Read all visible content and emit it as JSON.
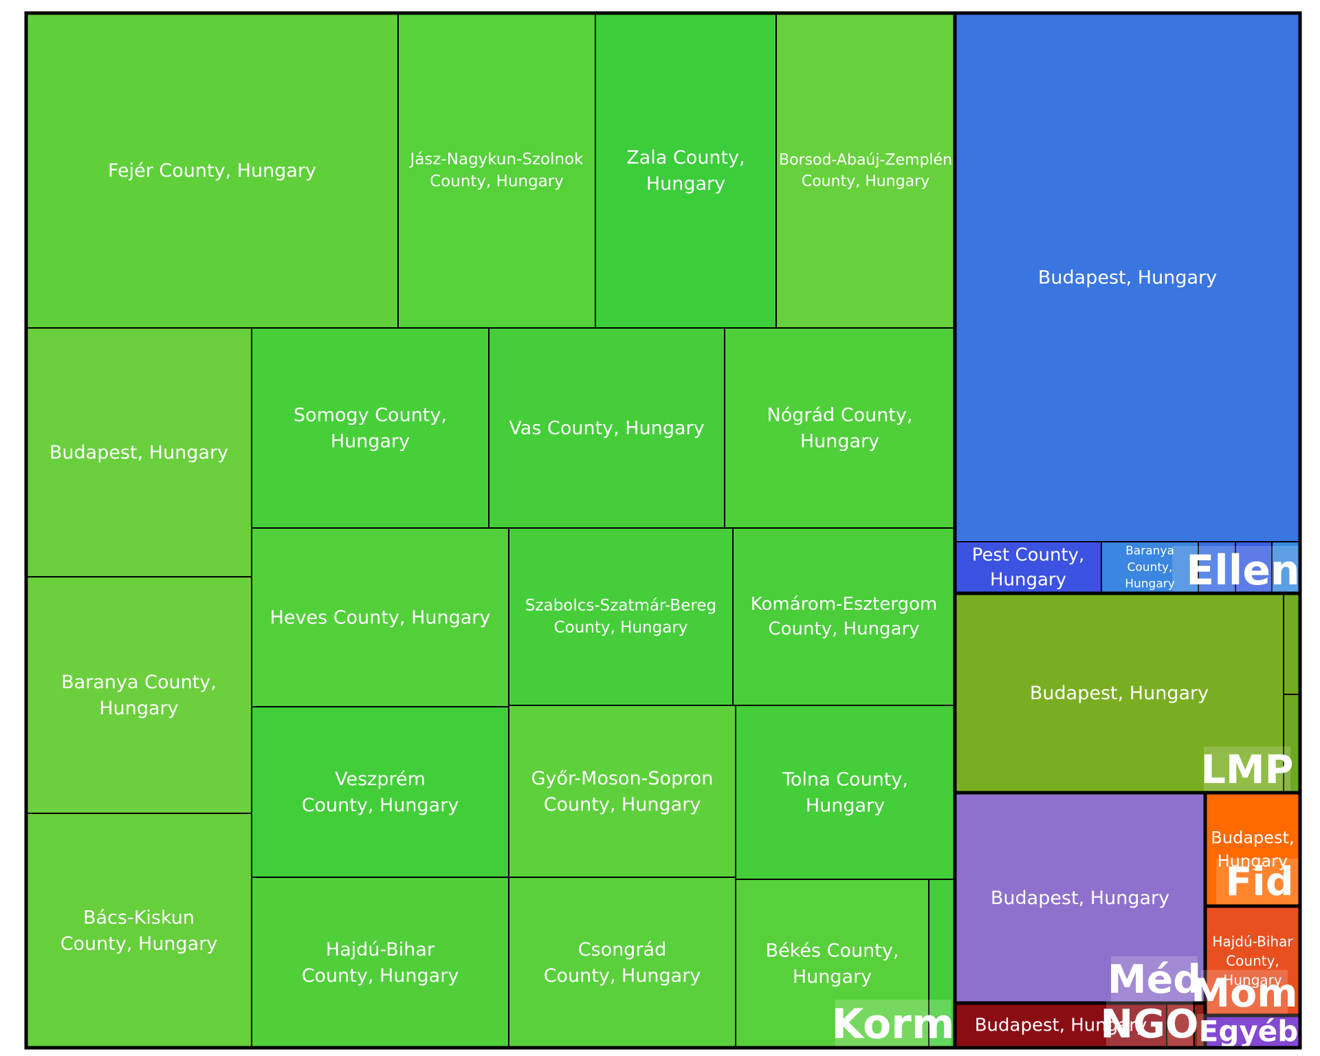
{
  "chart_data": {
    "type": "treemap",
    "title": "",
    "groups": [
      {
        "name": "Korm",
        "color": "#4fcf3a",
        "children": [
          {
            "name": "Fejér County, Hungary",
            "color": "#5fd03a"
          },
          {
            "name": "Jász-Nagykun-Szolnok County, Hungary",
            "color": "#55d13a"
          },
          {
            "name": "Zala County, Hungary",
            "color": "#3bcd3a"
          },
          {
            "name": "Borsod-Abaúj-Zemplén County, Hungary",
            "color": "#67d13d"
          },
          {
            "name": "Budapest, Hungary",
            "color": "#69cf3c"
          },
          {
            "name": "Somogy County, Hungary",
            "color": "#47cf3a"
          },
          {
            "name": "Vas County, Hungary",
            "color": "#45ce3a"
          },
          {
            "name": "Nógrád County, Hungary",
            "color": "#4fcf3a"
          },
          {
            "name": "Baranya County, Hungary",
            "color": "#6ccf3d"
          },
          {
            "name": "Heves County, Hungary",
            "color": "#52d03a"
          },
          {
            "name": "Szabolcs-Szatmár-Bereg County, Hungary",
            "color": "#46ce3a"
          },
          {
            "name": "Komárom-Esztergom County, Hungary",
            "color": "#4ace3a"
          },
          {
            "name": "Veszprém County, Hungary",
            "color": "#42ce38"
          },
          {
            "name": "Győr-Moson-Sopron County, Hungary",
            "color": "#5ed03c"
          },
          {
            "name": "Tolna County, Hungary",
            "color": "#44ce39"
          },
          {
            "name": "Bács-Kiskun County, Hungary",
            "color": "#66cf3c"
          },
          {
            "name": "Hajdú-Bihar County, Hungary",
            "color": "#50cf3a"
          },
          {
            "name": "Csongrád County, Hungary",
            "color": "#5ad03c"
          },
          {
            "name": "Békés County, Hungary",
            "color": "#58d03b"
          },
          {
            "name": "",
            "color": "#43cd3a"
          }
        ]
      },
      {
        "name": "Ellen",
        "color": "#3a76e0",
        "children": [
          {
            "name": "Budapest, Hungary",
            "color": "#3a76e0"
          },
          {
            "name": "Pest County, Hungary",
            "color": "#3c52e0"
          },
          {
            "name": "Baranya County, Hungary",
            "color": "#3a86e0"
          },
          {
            "name": "",
            "color": "#3a6ee0"
          },
          {
            "name": "",
            "color": "#3a60e0"
          },
          {
            "name": "",
            "color": "#3a8ae0"
          }
        ]
      },
      {
        "name": "LMP",
        "color": "#7aae22",
        "children": [
          {
            "name": "Budapest, Hungary",
            "color": "#7aae22"
          },
          {
            "name": "",
            "color": "#72aa22"
          },
          {
            "name": "",
            "color": "#6ea822"
          }
        ]
      },
      {
        "name": "Méd",
        "color": "#8e71cc",
        "children": [
          {
            "name": "Budapest, Hungary",
            "color": "#8e71cc"
          }
        ]
      },
      {
        "name": "Fid",
        "color": "#ff6a00",
        "children": [
          {
            "name": "Budapest, Hungary",
            "color": "#ff6a00"
          }
        ]
      },
      {
        "name": "Mom",
        "color": "#e85020",
        "children": [
          {
            "name": "Hajdú-Bihar County, Hungary",
            "color": "#e85020"
          }
        ]
      },
      {
        "name": "NGO",
        "color": "#8b0d14",
        "children": [
          {
            "name": "Budapest, Hungary",
            "color": "#8b0d14"
          },
          {
            "name": "",
            "color": "#a02020"
          },
          {
            "name": "",
            "color": "#902015"
          }
        ]
      },
      {
        "name": "Egyéb",
        "color": "#6a22c8",
        "children": []
      }
    ]
  }
}
